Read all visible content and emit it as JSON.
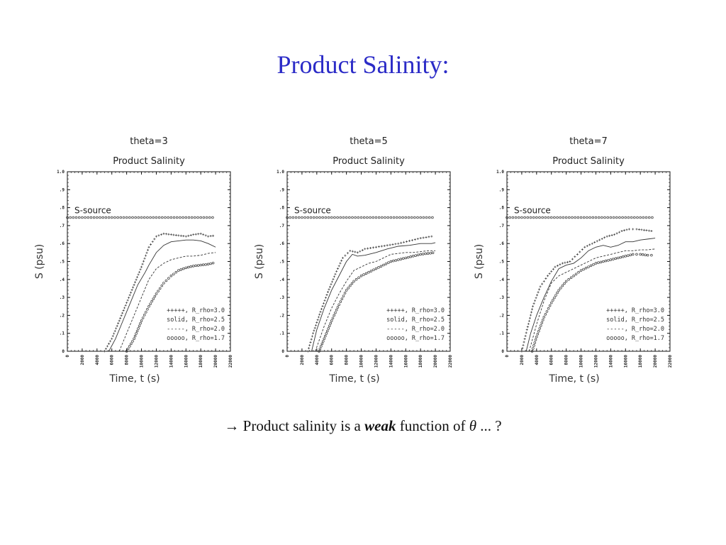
{
  "slide": {
    "title": "Product Salinity:",
    "caption": {
      "arrow": "→",
      "pre": "Product salinity is a",
      "emph": "weak",
      "post": "function of",
      "symbol": "θ",
      "tail": "... ?"
    }
  },
  "chart_data": [
    {
      "type": "line",
      "title": "theta=3",
      "subtitle": "Product Salinity",
      "xlabel": "Time, t (s)",
      "ylabel": "S (psu)",
      "xlim": [
        0,
        22000
      ],
      "ylim": [
        0,
        1.0
      ],
      "x_ticks": [
        "0",
        "2000",
        "4000",
        "6000",
        "8000",
        "10000",
        "12000",
        "14000",
        "16000",
        "18000",
        "20000",
        "22000"
      ],
      "y_ticks": [
        "0",
        ".1",
        ".2",
        ".3",
        ".4",
        ".5",
        ".6",
        ".7",
        ".8",
        ".9",
        "1.0"
      ],
      "annotation": {
        "text": "S-source",
        "y": 0.745
      },
      "legend_position": "lower-right",
      "series": [
        {
          "name": "R_rho=3.0",
          "legend_symbol": "+++++",
          "style": "plus",
          "x": [
            5000,
            6000,
            7000,
            8000,
            9000,
            10000,
            11000,
            12000,
            13000,
            14000,
            15000,
            16000,
            17000,
            18000,
            19000,
            20000
          ],
          "y": [
            0,
            0.07,
            0.17,
            0.27,
            0.37,
            0.47,
            0.58,
            0.64,
            0.655,
            0.65,
            0.645,
            0.64,
            0.65,
            0.655,
            0.64,
            0.645
          ]
        },
        {
          "name": "R_rho=2.5",
          "legend_symbol": "solid",
          "style": "solid",
          "x": [
            5600,
            6500,
            7500,
            8500,
            9500,
            10500,
            11000,
            12000,
            13000,
            14000,
            15000,
            16000,
            17000,
            18000,
            19000,
            20000
          ],
          "y": [
            0,
            0.07,
            0.17,
            0.27,
            0.37,
            0.44,
            0.48,
            0.55,
            0.59,
            0.61,
            0.615,
            0.62,
            0.62,
            0.615,
            0.6,
            0.58
          ]
        },
        {
          "name": "R_rho=2.0",
          "legend_symbol": "-----",
          "style": "dashed",
          "x": [
            7000,
            8000,
            9000,
            10000,
            11000,
            12000,
            13000,
            14000,
            15000,
            16000,
            17000,
            18000,
            19000,
            20000
          ],
          "y": [
            0,
            0.1,
            0.2,
            0.3,
            0.4,
            0.46,
            0.49,
            0.51,
            0.52,
            0.53,
            0.53,
            0.535,
            0.545,
            0.55
          ]
        },
        {
          "name": "R_rho=1.7",
          "legend_symbol": "ooooo",
          "style": "circle",
          "x": [
            8000,
            9000,
            10000,
            11000,
            12000,
            13000,
            14000,
            15000,
            16000,
            17000,
            18000,
            19000,
            20000
          ],
          "y": [
            0,
            0.07,
            0.17,
            0.25,
            0.32,
            0.38,
            0.42,
            0.45,
            0.465,
            0.475,
            0.48,
            0.485,
            0.495
          ]
        },
        {
          "name": "S-source",
          "style": "circle",
          "x": [
            0,
            2000,
            4000,
            6000,
            8000,
            10000,
            12000,
            14000,
            16000,
            18000,
            20000
          ],
          "y": [
            0.745,
            0.745,
            0.745,
            0.745,
            0.745,
            0.745,
            0.745,
            0.745,
            0.745,
            0.745,
            0.745
          ]
        }
      ]
    },
    {
      "type": "line",
      "title": "theta=5",
      "subtitle": "Product Salinity",
      "xlabel": "Time, t (s)",
      "ylabel": "S (psu)",
      "xlim": [
        0,
        22000
      ],
      "ylim": [
        0,
        1.0
      ],
      "x_ticks": [
        "0",
        "2000",
        "4000",
        "6000",
        "8000",
        "10000",
        "12000",
        "14000",
        "16000",
        "18000",
        "20000",
        "22000"
      ],
      "y_ticks": [
        "0",
        ".1",
        ".2",
        ".3",
        ".4",
        ".5",
        ".6",
        ".7",
        ".8",
        ".9",
        "1.0"
      ],
      "annotation": {
        "text": "S-source",
        "y": 0.745
      },
      "legend_position": "lower-right",
      "series": [
        {
          "name": "R_rho=3.0",
          "legend_symbol": "+++++",
          "style": "plus",
          "x": [
            2800,
            3500,
            4500,
            5500,
            6500,
            7500,
            8500,
            9500,
            10500,
            12000,
            13500,
            15000,
            16500,
            18000,
            19500,
            20000
          ],
          "y": [
            0,
            0.1,
            0.22,
            0.33,
            0.43,
            0.52,
            0.56,
            0.55,
            0.57,
            0.58,
            0.59,
            0.6,
            0.615,
            0.63,
            0.64,
            0.65
          ]
        },
        {
          "name": "R_rho=2.5",
          "legend_symbol": "solid",
          "style": "solid",
          "x": [
            3300,
            4000,
            5000,
            6000,
            7000,
            8000,
            8800,
            9500,
            10500,
            12000,
            13500,
            15000,
            16500,
            18000,
            19500,
            20000
          ],
          "y": [
            0,
            0.12,
            0.24,
            0.34,
            0.42,
            0.5,
            0.54,
            0.53,
            0.535,
            0.55,
            0.57,
            0.585,
            0.59,
            0.6,
            0.6,
            0.605
          ]
        },
        {
          "name": "R_rho=2.0",
          "legend_symbol": "-----",
          "style": "dashed",
          "x": [
            3800,
            5000,
            6000,
            7000,
            8000,
            9000,
            10000,
            11000,
            12000,
            13000,
            14000,
            15000,
            16000,
            17000,
            18000,
            19000,
            20000
          ],
          "y": [
            0,
            0.14,
            0.24,
            0.32,
            0.39,
            0.45,
            0.47,
            0.49,
            0.5,
            0.52,
            0.54,
            0.545,
            0.55,
            0.55,
            0.555,
            0.56,
            0.56
          ]
        },
        {
          "name": "R_rho=1.7",
          "legend_symbol": "ooooo",
          "style": "circle",
          "x": [
            4300,
            5000,
            6000,
            7000,
            8000,
            9000,
            10000,
            11000,
            12000,
            13000,
            14000,
            15000,
            16000,
            17000,
            18000,
            19000,
            20000
          ],
          "y": [
            0,
            0.07,
            0.17,
            0.26,
            0.34,
            0.39,
            0.42,
            0.44,
            0.46,
            0.48,
            0.5,
            0.51,
            0.52,
            0.53,
            0.54,
            0.545,
            0.55
          ]
        },
        {
          "name": "S-source",
          "style": "circle",
          "x": [
            0,
            2000,
            4000,
            6000,
            8000,
            10000,
            12000,
            14000,
            16000,
            18000,
            20000
          ],
          "y": [
            0.745,
            0.745,
            0.745,
            0.745,
            0.745,
            0.745,
            0.745,
            0.745,
            0.745,
            0.745,
            0.745
          ]
        }
      ]
    },
    {
      "type": "line",
      "title": "theta=7",
      "subtitle": "Product Salinity",
      "xlabel": "Time, t (s)",
      "ylabel": "S (psu)",
      "xlim": [
        0,
        22000
      ],
      "ylim": [
        0,
        1.0
      ],
      "x_ticks": [
        "0",
        "2000",
        "4000",
        "6000",
        "8000",
        "10000",
        "12000",
        "14000",
        "16000",
        "18000",
        "20000",
        "22000"
      ],
      "y_ticks": [
        "0",
        ".1",
        ".2",
        ".3",
        ".4",
        ".5",
        ".6",
        ".7",
        ".8",
        ".9",
        "1.0"
      ],
      "annotation": {
        "text": "S-source",
        "y": 0.745
      },
      "legend_position": "lower-right",
      "series": [
        {
          "name": "R_rho=3.0",
          "legend_symbol": "+++++",
          "style": "plus",
          "x": [
            2000,
            2700,
            3500,
            4500,
            5500,
            6500,
            7500,
            8500,
            9500,
            10500,
            11500,
            12500,
            13500,
            14500,
            15500,
            16500,
            17500,
            18500,
            19500,
            20000
          ],
          "y": [
            0,
            0.12,
            0.25,
            0.36,
            0.42,
            0.47,
            0.49,
            0.5,
            0.54,
            0.58,
            0.6,
            0.62,
            0.64,
            0.65,
            0.67,
            0.68,
            0.68,
            0.675,
            0.67,
            0.67
          ]
        },
        {
          "name": "R_rho=2.5",
          "legend_symbol": "solid",
          "style": "solid",
          "x": [
            2600,
            3200,
            4000,
            5000,
            6000,
            7000,
            8000,
            9000,
            10000,
            11000,
            12000,
            13000,
            14000,
            15000,
            16000,
            17000,
            18000,
            19000,
            20000
          ],
          "y": [
            0,
            0.1,
            0.2,
            0.3,
            0.39,
            0.46,
            0.48,
            0.49,
            0.52,
            0.56,
            0.58,
            0.59,
            0.58,
            0.59,
            0.61,
            0.61,
            0.62,
            0.625,
            0.63
          ]
        },
        {
          "name": "R_rho=2.0",
          "legend_symbol": "-----",
          "style": "dashed",
          "x": [
            3000,
            4000,
            5000,
            6000,
            7000,
            8000,
            9000,
            10000,
            11000,
            12000,
            13000,
            14000,
            15000,
            16000,
            17000,
            18000,
            19000,
            20000
          ],
          "y": [
            0,
            0.15,
            0.28,
            0.38,
            0.42,
            0.44,
            0.46,
            0.48,
            0.5,
            0.52,
            0.53,
            0.54,
            0.55,
            0.56,
            0.56,
            0.565,
            0.565,
            0.57
          ]
        },
        {
          "name": "R_rho=1.7",
          "legend_symbol": "ooooo",
          "style": "circle",
          "x": [
            3400,
            4000,
            5000,
            6000,
            7000,
            8000,
            9000,
            10000,
            11000,
            12000,
            13000,
            14000,
            15000,
            16000,
            17000,
            18000,
            19000,
            20000
          ],
          "y": [
            0,
            0.08,
            0.19,
            0.27,
            0.34,
            0.39,
            0.42,
            0.45,
            0.47,
            0.49,
            0.5,
            0.51,
            0.52,
            0.53,
            0.54,
            0.54,
            0.535,
            0.535
          ]
        },
        {
          "name": "S-source",
          "style": "circle",
          "x": [
            0,
            2000,
            4000,
            6000,
            8000,
            10000,
            12000,
            14000,
            16000,
            18000,
            20000
          ],
          "y": [
            0.745,
            0.745,
            0.745,
            0.745,
            0.745,
            0.745,
            0.745,
            0.745,
            0.745,
            0.745,
            0.745
          ]
        }
      ]
    }
  ]
}
